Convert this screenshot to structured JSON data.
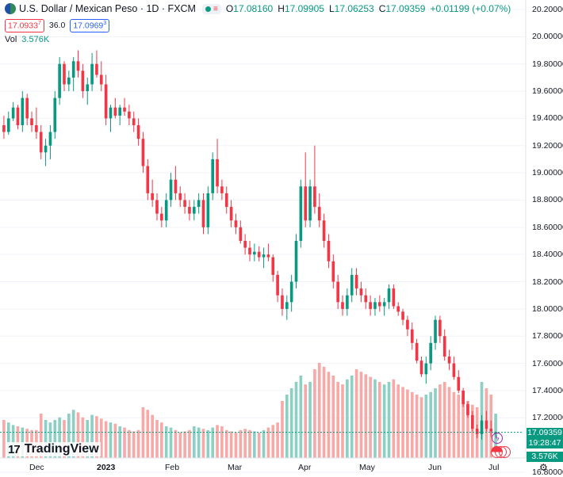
{
  "legend": {
    "title": "U.S. Dollar / Mexican Peso · 1D · FXCM",
    "open_label": "O",
    "open": "17.08160",
    "high_label": "H",
    "high": "17.09905",
    "low_label": "L",
    "low": "17.06253",
    "close_label": "C",
    "close": "17.09359",
    "change": "+0.01199 (+0.07%)",
    "sell_price": "17.0933",
    "sell_price_sup": "7",
    "spread": "36.0",
    "buy_price": "17.0969",
    "buy_price_sup": "3",
    "vol_label": "Vol",
    "vol_value": "3.576K"
  },
  "price_axis": {
    "ticks": [
      "20.20000",
      "20.00000",
      "19.80000",
      "19.60000",
      "19.40000",
      "19.20000",
      "19.00000",
      "18.80000",
      "18.60000",
      "18.40000",
      "18.20000",
      "18.00000",
      "17.80000",
      "17.60000",
      "17.40000",
      "17.20000",
      "16.80000"
    ],
    "last_price": "17.09359",
    "countdown": "19:28:47",
    "last_volume": "3.576K"
  },
  "time_axis": {
    "labels": [
      "Dec",
      "2023",
      "Feb",
      "Mar",
      "Apr",
      "May",
      "Jun",
      "Jul"
    ]
  },
  "logo": {
    "text": "TradingView",
    "mark": "17"
  },
  "colors": {
    "up": "#089981",
    "down": "#f23645",
    "vol_up": "#8ccfc3",
    "vol_down": "#f7a9a7"
  },
  "chart_data": {
    "type": "candlestick",
    "y_range": [
      16.8,
      20.2
    ],
    "ohlc": [
      [
        19.35,
        19.42,
        19.25,
        19.3
      ],
      [
        19.3,
        19.45,
        19.28,
        19.4
      ],
      [
        19.4,
        19.52,
        19.38,
        19.48
      ],
      [
        19.48,
        19.5,
        19.32,
        19.35
      ],
      [
        19.35,
        19.6,
        19.3,
        19.55
      ],
      [
        19.55,
        19.58,
        19.35,
        19.4
      ],
      [
        19.4,
        19.45,
        19.3,
        19.35
      ],
      [
        19.35,
        19.48,
        19.25,
        19.3
      ],
      [
        19.3,
        19.35,
        19.1,
        19.15
      ],
      [
        19.15,
        19.25,
        19.05,
        19.2
      ],
      [
        19.2,
        19.35,
        19.1,
        19.3
      ],
      [
        19.3,
        19.6,
        19.25,
        19.55
      ],
      [
        19.55,
        19.85,
        19.5,
        19.8
      ],
      [
        19.8,
        19.82,
        19.6,
        19.65
      ],
      [
        19.65,
        19.75,
        19.6,
        19.7
      ],
      [
        19.7,
        19.85,
        19.6,
        19.82
      ],
      [
        19.82,
        19.9,
        19.7,
        19.75
      ],
      [
        19.75,
        19.8,
        19.55,
        19.6
      ],
      [
        19.6,
        19.7,
        19.5,
        19.65
      ],
      [
        19.65,
        19.88,
        19.6,
        19.8
      ],
      [
        19.8,
        19.9,
        19.7,
        19.72
      ],
      [
        19.72,
        19.82,
        19.6,
        19.65
      ],
      [
        19.65,
        19.72,
        19.35,
        19.4
      ],
      [
        19.4,
        19.5,
        19.3,
        19.48
      ],
      [
        19.48,
        19.55,
        19.4,
        19.42
      ],
      [
        19.42,
        19.5,
        19.35,
        19.48
      ],
      [
        19.48,
        19.55,
        19.42,
        19.45
      ],
      [
        19.45,
        19.5,
        19.35,
        19.4
      ],
      [
        19.4,
        19.45,
        19.3,
        19.35
      ],
      [
        19.35,
        19.4,
        19.2,
        19.25
      ],
      [
        19.25,
        19.3,
        19.0,
        19.05
      ],
      [
        19.05,
        19.1,
        18.8,
        18.85
      ],
      [
        18.85,
        18.95,
        18.75,
        18.8
      ],
      [
        18.8,
        18.85,
        18.65,
        18.7
      ],
      [
        18.7,
        18.75,
        18.6,
        18.65
      ],
      [
        18.65,
        18.85,
        18.6,
        18.8
      ],
      [
        18.8,
        19.0,
        18.75,
        18.95
      ],
      [
        18.95,
        19.05,
        18.8,
        18.85
      ],
      [
        18.85,
        18.9,
        18.75,
        18.8
      ],
      [
        18.8,
        18.85,
        18.7,
        18.75
      ],
      [
        18.75,
        18.8,
        18.65,
        18.7
      ],
      [
        18.7,
        18.8,
        18.65,
        18.75
      ],
      [
        18.75,
        18.85,
        18.7,
        18.8
      ],
      [
        18.8,
        18.85,
        18.55,
        18.6
      ],
      [
        18.6,
        18.9,
        18.55,
        18.85
      ],
      [
        18.85,
        19.15,
        18.8,
        19.1
      ],
      [
        19.1,
        19.25,
        18.85,
        18.9
      ],
      [
        18.9,
        18.95,
        18.8,
        18.85
      ],
      [
        18.85,
        18.9,
        18.7,
        18.75
      ],
      [
        18.75,
        18.8,
        18.6,
        18.65
      ],
      [
        18.65,
        18.7,
        18.55,
        18.6
      ],
      [
        18.6,
        18.65,
        18.48,
        18.5
      ],
      [
        18.5,
        18.55,
        18.4,
        18.45
      ],
      [
        18.45,
        18.5,
        18.35,
        18.4
      ],
      [
        18.4,
        18.48,
        18.35,
        18.42
      ],
      [
        18.42,
        18.46,
        18.35,
        18.38
      ],
      [
        18.38,
        18.45,
        18.3,
        18.4
      ],
      [
        18.4,
        18.48,
        18.35,
        18.38
      ],
      [
        18.38,
        18.4,
        18.2,
        18.25
      ],
      [
        18.25,
        18.28,
        18.05,
        18.1
      ],
      [
        18.1,
        18.15,
        17.95,
        18.0
      ],
      [
        18.0,
        18.1,
        17.92,
        18.05
      ],
      [
        18.05,
        18.25,
        17.98,
        18.2
      ],
      [
        18.2,
        18.55,
        18.15,
        18.5
      ],
      [
        18.5,
        18.95,
        18.45,
        18.9
      ],
      [
        18.9,
        19.15,
        18.6,
        18.65
      ],
      [
        18.65,
        18.95,
        18.6,
        18.9
      ],
      [
        18.9,
        19.2,
        18.7,
        18.75
      ],
      [
        18.75,
        18.85,
        18.6,
        18.65
      ],
      [
        18.65,
        18.7,
        18.45,
        18.5
      ],
      [
        18.5,
        18.55,
        18.3,
        18.35
      ],
      [
        18.35,
        18.4,
        18.15,
        18.2
      ],
      [
        18.2,
        18.25,
        18.0,
        18.05
      ],
      [
        18.05,
        18.1,
        17.95,
        18.0
      ],
      [
        18.0,
        18.15,
        17.95,
        18.1
      ],
      [
        18.1,
        18.3,
        18.05,
        18.25
      ],
      [
        18.25,
        18.3,
        18.1,
        18.15
      ],
      [
        18.15,
        18.2,
        18.05,
        18.1
      ],
      [
        18.1,
        18.15,
        18.0,
        18.05
      ],
      [
        18.05,
        18.1,
        17.95,
        18.0
      ],
      [
        18.0,
        18.08,
        17.95,
        18.05
      ],
      [
        18.05,
        18.1,
        17.98,
        18.02
      ],
      [
        18.02,
        18.08,
        17.95,
        18.05
      ],
      [
        18.05,
        18.18,
        18.0,
        18.15
      ],
      [
        18.15,
        18.18,
        18.0,
        18.02
      ],
      [
        18.02,
        18.05,
        17.95,
        17.98
      ],
      [
        17.98,
        18.0,
        17.88,
        17.92
      ],
      [
        17.92,
        17.95,
        17.8,
        17.85
      ],
      [
        17.85,
        17.9,
        17.7,
        17.75
      ],
      [
        17.75,
        17.78,
        17.6,
        17.62
      ],
      [
        17.62,
        17.65,
        17.5,
        17.52
      ],
      [
        17.52,
        17.65,
        17.45,
        17.6
      ],
      [
        17.6,
        17.8,
        17.55,
        17.75
      ],
      [
        17.75,
        17.95,
        17.7,
        17.92
      ],
      [
        17.92,
        17.95,
        17.75,
        17.8
      ],
      [
        17.8,
        17.85,
        17.62,
        17.65
      ],
      [
        17.65,
        17.7,
        17.55,
        17.6
      ],
      [
        17.6,
        17.65,
        17.48,
        17.5
      ],
      [
        17.5,
        17.55,
        17.38,
        17.4
      ],
      [
        17.4,
        17.42,
        17.28,
        17.3
      ],
      [
        17.3,
        17.32,
        17.2,
        17.22
      ],
      [
        17.22,
        17.25,
        17.1,
        17.12
      ],
      [
        17.12,
        17.15,
        17.05,
        17.08
      ],
      [
        17.08,
        17.22,
        17.04,
        17.18
      ],
      [
        17.18,
        17.25,
        17.1,
        17.12
      ],
      [
        17.12,
        17.18,
        17.06,
        17.1
      ],
      [
        17.0816,
        17.09905,
        17.06253,
        17.09359
      ]
    ],
    "volume_range": [
      0,
      100
    ],
    "volume": [
      30,
      28,
      26,
      25,
      24,
      23,
      22,
      22,
      35,
      30,
      28,
      30,
      32,
      30,
      35,
      38,
      36,
      32,
      30,
      34,
      33,
      31,
      29,
      28,
      27,
      25,
      24,
      22,
      21,
      22,
      40,
      38,
      34,
      30,
      28,
      25,
      24,
      22,
      20,
      21,
      22,
      25,
      24,
      23,
      22,
      24,
      26,
      25,
      22,
      21,
      20,
      22,
      23,
      22,
      21,
      20,
      22,
      24,
      26,
      28,
      45,
      50,
      55,
      60,
      65,
      58,
      60,
      70,
      75,
      72,
      68,
      65,
      60,
      58,
      62,
      65,
      70,
      68,
      66,
      64,
      62,
      60,
      58,
      60,
      62,
      58,
      56,
      54,
      52,
      50,
      48,
      50,
      52,
      55,
      58,
      60,
      56,
      52,
      50,
      48,
      45,
      42,
      40,
      60,
      55,
      50,
      35
    ]
  }
}
